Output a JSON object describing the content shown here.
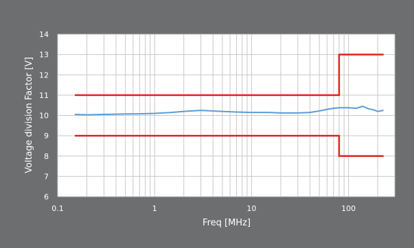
{
  "chart_data": {
    "type": "line",
    "title": "",
    "xlabel": "Freq [MHz]",
    "ylabel": "Voltage division Factor [V]",
    "x_scale": "log",
    "xlim": [
      0.1,
      300
    ],
    "ylim": [
      6,
      14
    ],
    "x_ticks": [
      {
        "value": 0.1,
        "label": "0.1"
      },
      {
        "value": 1,
        "label": "1"
      },
      {
        "value": 10,
        "label": "10"
      },
      {
        "value": 100,
        "label": "100"
      }
    ],
    "y_ticks": [
      {
        "value": 6,
        "label": "6"
      },
      {
        "value": 7,
        "label": "7"
      },
      {
        "value": 8,
        "label": "8"
      },
      {
        "value": 9,
        "label": "9"
      },
      {
        "value": 10,
        "label": "10"
      },
      {
        "value": 11,
        "label": "11"
      },
      {
        "value": 12,
        "label": "12"
      },
      {
        "value": 13,
        "label": "13"
      },
      {
        "value": 14,
        "label": "14"
      }
    ],
    "grid": {
      "vertical_minor": true,
      "horizontal": true
    },
    "legend": "none",
    "series": [
      {
        "color": "#5b9bd5",
        "x": [
          0.15,
          0.2,
          0.3,
          0.5,
          0.7,
          1,
          1.5,
          2,
          3,
          4,
          5,
          7,
          10,
          15,
          20,
          30,
          40,
          50,
          60,
          70,
          80,
          90,
          100,
          120,
          140,
          160,
          180,
          200,
          230
        ],
        "y": [
          10.05,
          10.03,
          10.05,
          10.07,
          10.08,
          10.1,
          10.15,
          10.2,
          10.25,
          10.22,
          10.2,
          10.17,
          10.15,
          10.15,
          10.12,
          10.12,
          10.15,
          10.22,
          10.3,
          10.35,
          10.38,
          10.38,
          10.38,
          10.35,
          10.45,
          10.33,
          10.28,
          10.2,
          10.25
        ]
      },
      {
        "color": "#e0231d",
        "x": [
          0.15,
          80,
          80,
          230
        ],
        "y": [
          11,
          11,
          13,
          13
        ]
      },
      {
        "color": "#e0231d",
        "x": [
          0.15,
          80,
          80,
          230
        ],
        "y": [
          9,
          9,
          8,
          8
        ]
      }
    ]
  },
  "style": {
    "background": "#6d6e70",
    "plot_background": "#ffffff",
    "grid_color": "#c8c8c8",
    "text_color": "#ffffff"
  }
}
